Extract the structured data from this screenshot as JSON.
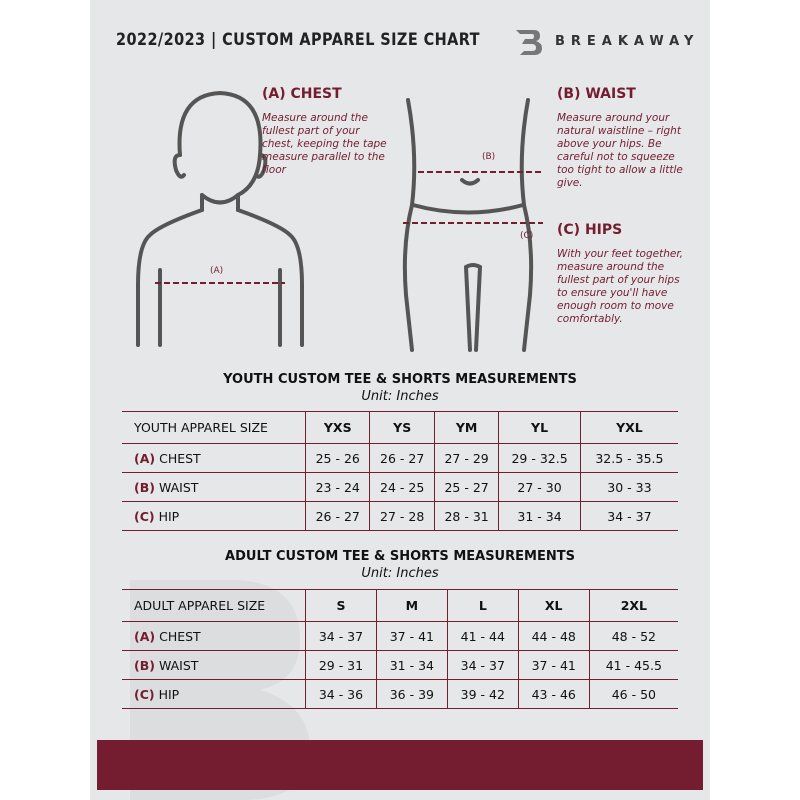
{
  "header": {
    "title": "2022/2023  |  CUSTOM APPAREL SIZE CHART",
    "brand": "BREAKAWAY"
  },
  "guides": {
    "chest": {
      "heading": "(A) CHEST",
      "text": "Measure around the fullest part of your chest, keeping the tape measure parallel to the floor",
      "marker": "(A)"
    },
    "waist": {
      "heading": "(B) WAIST",
      "text": "Measure around your natural waistline – right above your hips. Be careful not to squeeze too tight to allow a little give.",
      "marker": "(B)"
    },
    "hips": {
      "heading": "(C) HIPS",
      "text": "With your feet together, measure around the fullest part of your hips to ensure you'll have enough room to move comfortably.",
      "marker": "(C)"
    }
  },
  "colors": {
    "accent": "#741c30",
    "background": "#e6e7e8"
  },
  "youth": {
    "title": "YOUTH CUSTOM TEE & SHORTS MEASUREMENTS",
    "unit": "Unit: Inches",
    "header_label": "YOUTH APPAREL SIZE",
    "sizes": [
      "YXS",
      "YS",
      "YM",
      "YL",
      "YXL"
    ],
    "rows": [
      {
        "code": "(A)",
        "label": "CHEST",
        "values": [
          "25 - 26",
          "26 - 27",
          "27 - 29",
          "29 - 32.5",
          "32.5 - 35.5"
        ]
      },
      {
        "code": "(B)",
        "label": "WAIST",
        "values": [
          "23 - 24",
          "24 - 25",
          "25 - 27",
          "27 - 30",
          "30 - 33"
        ]
      },
      {
        "code": "(C)",
        "label": "HIP",
        "values": [
          "26 - 27",
          "27 - 28",
          "28 - 31",
          "31 - 34",
          "34 - 37"
        ]
      }
    ]
  },
  "adult": {
    "title": "ADULT CUSTOM TEE & SHORTS MEASUREMENTS",
    "unit": "Unit: Inches",
    "header_label": "ADULT APPAREL SIZE",
    "sizes": [
      "S",
      "M",
      "L",
      "XL",
      "2XL"
    ],
    "rows": [
      {
        "code": "(A)",
        "label": "CHEST",
        "values": [
          "34 - 37",
          "37 - 41",
          "41 - 44",
          "44 - 48",
          "48 - 52"
        ]
      },
      {
        "code": "(B)",
        "label": "WAIST",
        "values": [
          "29 - 31",
          "31 - 34",
          "34 - 37",
          "37 - 41",
          "41 - 45.5"
        ]
      },
      {
        "code": "(C)",
        "label": "HIP",
        "values": [
          "34 - 36",
          "36 - 39",
          "39 - 42",
          "43 - 46",
          "46 - 50"
        ]
      }
    ]
  }
}
